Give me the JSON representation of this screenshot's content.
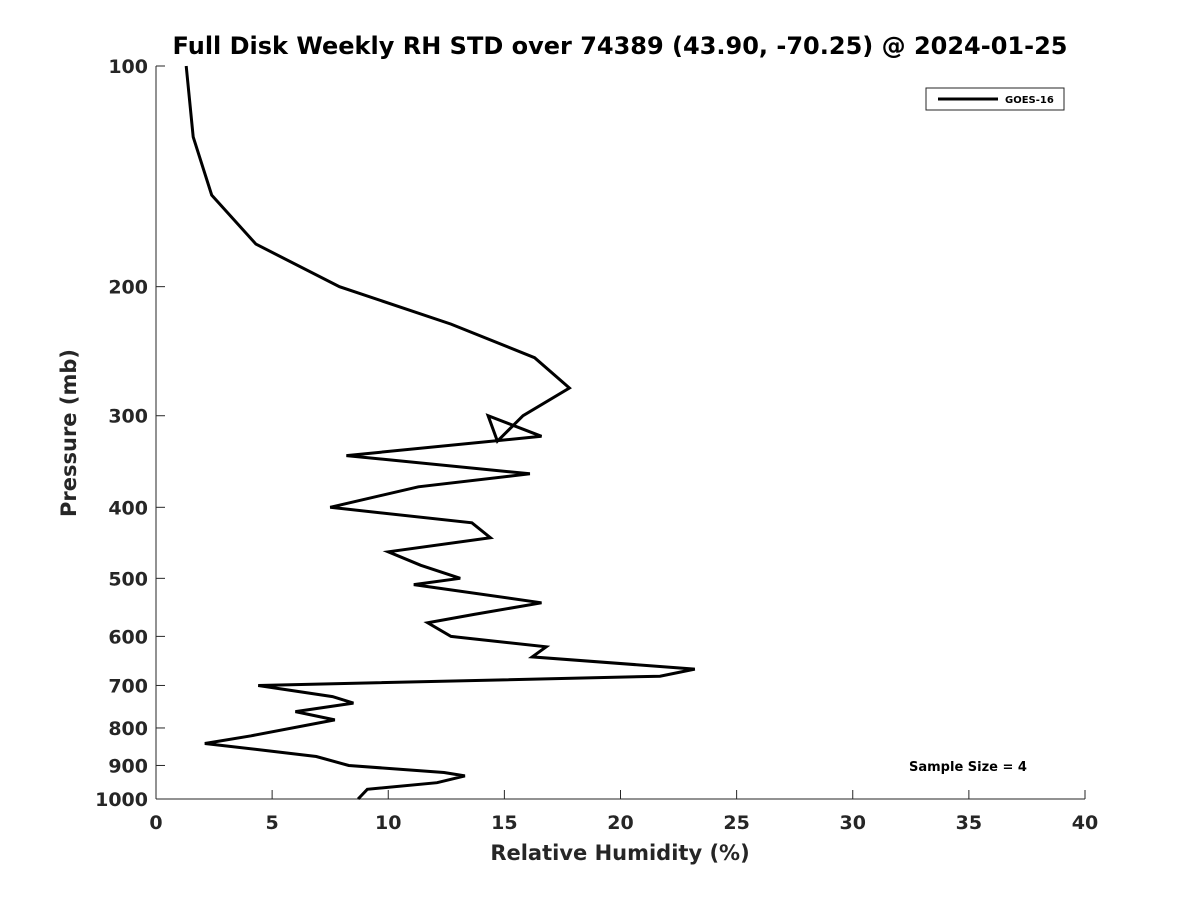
{
  "chart_data": {
    "type": "line",
    "title": "Full Disk Weekly RH STD over 74389 (43.90, -70.25) @ 2024-01-25",
    "xlabel": "Relative Humidity (%)",
    "ylabel": "Pressure (mb)",
    "xlim": [
      0,
      40
    ],
    "ylim": [
      100,
      1000
    ],
    "y_scale": "log",
    "y_reversed": true,
    "x_ticks": [
      0,
      5,
      10,
      15,
      20,
      25,
      30,
      35,
      40
    ],
    "y_ticks": [
      100,
      200,
      300,
      400,
      500,
      600,
      700,
      800,
      900,
      1000
    ],
    "grid": false,
    "legend_position": "top-right",
    "annotation": "Sample Size = 4",
    "series": [
      {
        "name": "GOES-16",
        "color": "#000000",
        "points": [
          [
            1.3,
            100
          ],
          [
            1.6,
            125
          ],
          [
            2.4,
            150
          ],
          [
            4.3,
            175
          ],
          [
            7.9,
            200
          ],
          [
            12.7,
            225
          ],
          [
            16.3,
            250
          ],
          [
            17.8,
            275
          ],
          [
            15.8,
            300
          ],
          [
            14.7,
            325
          ],
          [
            14.3,
            300
          ],
          [
            16.6,
            320
          ],
          [
            8.2,
            340
          ],
          [
            16.1,
            360
          ],
          [
            11.3,
            375
          ],
          [
            7.5,
            400
          ],
          [
            13.6,
            420
          ],
          [
            14.4,
            440
          ],
          [
            10.0,
            460
          ],
          [
            11.4,
            480
          ],
          [
            13.1,
            500
          ],
          [
            11.1,
            510
          ],
          [
            16.6,
            540
          ],
          [
            13.7,
            560
          ],
          [
            11.7,
            575
          ],
          [
            12.7,
            600
          ],
          [
            16.8,
            620
          ],
          [
            16.2,
            640
          ],
          [
            23.2,
            665
          ],
          [
            21.7,
            680
          ],
          [
            4.4,
            700
          ],
          [
            7.6,
            725
          ],
          [
            8.5,
            740
          ],
          [
            6.0,
            760
          ],
          [
            7.7,
            780
          ],
          [
            4.1,
            820
          ],
          [
            2.1,
            840
          ],
          [
            4.9,
            860
          ],
          [
            6.9,
            875
          ],
          [
            8.3,
            900
          ],
          [
            12.4,
            920
          ],
          [
            13.3,
            930
          ],
          [
            12.1,
            950
          ],
          [
            9.1,
            970
          ],
          [
            8.7,
            1000
          ]
        ]
      }
    ]
  }
}
